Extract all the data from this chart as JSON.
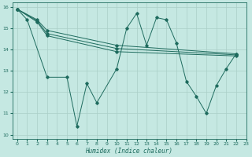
{
  "xlabel": "Humidex (Indice chaleur)",
  "xlim": [
    -0.5,
    23
  ],
  "ylim": [
    9.8,
    16.2
  ],
  "yticks": [
    10,
    11,
    12,
    13,
    14,
    15,
    16
  ],
  "xticks": [
    0,
    1,
    2,
    3,
    4,
    5,
    6,
    7,
    8,
    9,
    10,
    11,
    12,
    13,
    14,
    15,
    16,
    17,
    18,
    19,
    20,
    21,
    22,
    23
  ],
  "bg_color": "#c5e8e2",
  "grid_color": "#aacfc8",
  "line_color": "#1e6b5e",
  "series": [
    {
      "x": [
        0,
        1,
        3,
        5,
        6,
        7,
        8,
        10,
        11,
        12,
        13,
        14,
        15,
        16,
        17,
        18,
        19,
        20,
        21,
        22
      ],
      "y": [
        15.9,
        15.4,
        12.7,
        12.7,
        10.4,
        12.4,
        11.5,
        13.1,
        15.0,
        15.7,
        14.2,
        15.5,
        15.4,
        14.3,
        12.5,
        11.8,
        11.0,
        12.3,
        13.1,
        13.8
      ]
    },
    {
      "x": [
        0,
        2,
        3,
        10,
        22
      ],
      "y": [
        15.9,
        15.4,
        14.9,
        14.2,
        13.8
      ]
    },
    {
      "x": [
        0,
        2,
        3,
        10,
        22
      ],
      "y": [
        15.9,
        15.35,
        14.75,
        14.05,
        13.75
      ]
    },
    {
      "x": [
        0,
        2,
        3,
        10,
        22
      ],
      "y": [
        15.9,
        15.3,
        14.65,
        13.9,
        13.7
      ]
    }
  ]
}
